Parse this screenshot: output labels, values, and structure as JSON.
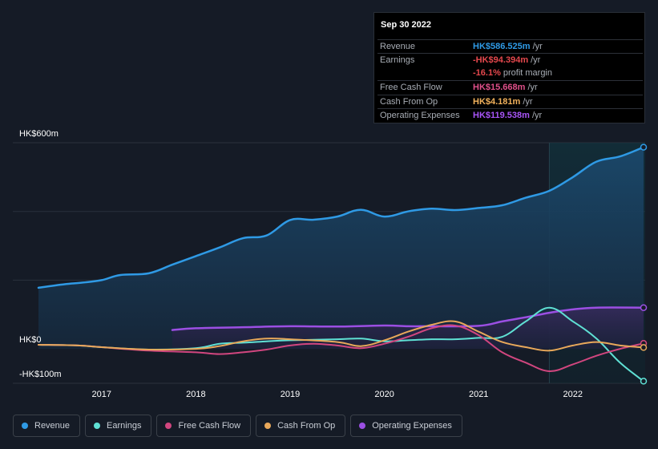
{
  "tooltip": {
    "date": "Sep 30 2022",
    "rows": [
      {
        "label": "Revenue",
        "value": "HK$586.525m",
        "unit": "/yr",
        "color": "#2f9ae5"
      },
      {
        "label": "Earnings",
        "value": "-HK$94.394m",
        "unit": "/yr",
        "color": "#e5484d"
      },
      {
        "label": "",
        "value": "-16.1%",
        "unit": "profit margin",
        "color": "#e5484d"
      },
      {
        "label": "Free Cash Flow",
        "value": "HK$15.668m",
        "unit": "/yr",
        "color": "#e0508a"
      },
      {
        "label": "Cash From Op",
        "value": "HK$4.181m",
        "unit": "/yr",
        "color": "#f2b25c"
      },
      {
        "label": "Operating Expenses",
        "value": "HK$119.538m",
        "unit": "/yr",
        "color": "#a855f7"
      }
    ]
  },
  "legend": [
    {
      "label": "Revenue",
      "color": "#2f9ae5"
    },
    {
      "label": "Earnings",
      "color": "#5fe0d4"
    },
    {
      "label": "Free Cash Flow",
      "color": "#d1467f"
    },
    {
      "label": "Cash From Op",
      "color": "#e8a85a"
    },
    {
      "label": "Operating Expenses",
      "color": "#9b4fe3"
    }
  ],
  "chart_data": {
    "type": "line",
    "y_tick_labels": [
      "HK$600m",
      "HK$0",
      "-HK$100m"
    ],
    "ylim": [
      -100,
      600
    ],
    "xlim": [
      2016.33,
      2022.75
    ],
    "x_tick_labels": [
      "2017",
      "2018",
      "2019",
      "2020",
      "2021",
      "2022"
    ],
    "x_ticks": [
      2017,
      2018,
      2019,
      2020,
      2021,
      2022
    ],
    "highlight_start": 2021.75,
    "series": [
      {
        "name": "Revenue",
        "color": "#2f9ae5",
        "fill": true,
        "points": [
          [
            2016.33,
            178
          ],
          [
            2016.6,
            188
          ],
          [
            2016.8,
            193
          ],
          [
            2017,
            200
          ],
          [
            2017.2,
            215
          ],
          [
            2017.5,
            220
          ],
          [
            2017.75,
            245
          ],
          [
            2018,
            270
          ],
          [
            2018.25,
            295
          ],
          [
            2018.5,
            322
          ],
          [
            2018.75,
            330
          ],
          [
            2019,
            375
          ],
          [
            2019.25,
            376
          ],
          [
            2019.5,
            385
          ],
          [
            2019.75,
            405
          ],
          [
            2020,
            385
          ],
          [
            2020.25,
            400
          ],
          [
            2020.5,
            408
          ],
          [
            2020.75,
            404
          ],
          [
            2021,
            410
          ],
          [
            2021.25,
            418
          ],
          [
            2021.5,
            440
          ],
          [
            2021.75,
            460
          ],
          [
            2022,
            500
          ],
          [
            2022.25,
            545
          ],
          [
            2022.5,
            560
          ],
          [
            2022.75,
            587
          ]
        ]
      },
      {
        "name": "Operating Expenses",
        "color": "#9b4fe3",
        "fill": true,
        "points": [
          [
            2017.75,
            55
          ],
          [
            2018,
            60
          ],
          [
            2018.5,
            63
          ],
          [
            2019,
            66
          ],
          [
            2019.5,
            65
          ],
          [
            2020,
            68
          ],
          [
            2020.25,
            66
          ],
          [
            2020.5,
            66
          ],
          [
            2021,
            67
          ],
          [
            2021.25,
            80
          ],
          [
            2021.5,
            92
          ],
          [
            2021.75,
            105
          ],
          [
            2022,
            115
          ],
          [
            2022.25,
            120
          ],
          [
            2022.75,
            120
          ]
        ]
      },
      {
        "name": "Earnings",
        "color": "#5fe0d4",
        "fill": false,
        "points": [
          [
            2016.33,
            12
          ],
          [
            2016.75,
            10
          ],
          [
            2017,
            5
          ],
          [
            2017.5,
            -2
          ],
          [
            2018,
            2
          ],
          [
            2018.25,
            15
          ],
          [
            2018.5,
            18
          ],
          [
            2018.75,
            22
          ],
          [
            2019,
            25
          ],
          [
            2019.5,
            28
          ],
          [
            2019.75,
            30
          ],
          [
            2020,
            22
          ],
          [
            2020.25,
            25
          ],
          [
            2020.5,
            28
          ],
          [
            2020.75,
            28
          ],
          [
            2021,
            32
          ],
          [
            2021.25,
            35
          ],
          [
            2021.5,
            80
          ],
          [
            2021.75,
            120
          ],
          [
            2022,
            80
          ],
          [
            2022.25,
            30
          ],
          [
            2022.5,
            -40
          ],
          [
            2022.75,
            -94
          ]
        ]
      },
      {
        "name": "Free Cash Flow",
        "color": "#d1467f",
        "fill": false,
        "points": [
          [
            2016.33,
            12
          ],
          [
            2016.75,
            10
          ],
          [
            2017,
            5
          ],
          [
            2017.5,
            -5
          ],
          [
            2018,
            -10
          ],
          [
            2018.25,
            -15
          ],
          [
            2018.5,
            -10
          ],
          [
            2018.75,
            -2
          ],
          [
            2019,
            10
          ],
          [
            2019.25,
            15
          ],
          [
            2019.5,
            10
          ],
          [
            2019.75,
            2
          ],
          [
            2020,
            15
          ],
          [
            2020.25,
            35
          ],
          [
            2020.5,
            60
          ],
          [
            2020.75,
            68
          ],
          [
            2021,
            40
          ],
          [
            2021.25,
            -10
          ],
          [
            2021.5,
            -40
          ],
          [
            2021.75,
            -65
          ],
          [
            2022,
            -45
          ],
          [
            2022.25,
            -20
          ],
          [
            2022.5,
            0
          ],
          [
            2022.75,
            16
          ]
        ]
      },
      {
        "name": "Cash From Op",
        "color": "#e8a85a",
        "fill": false,
        "points": [
          [
            2016.33,
            12
          ],
          [
            2016.75,
            10
          ],
          [
            2017,
            5
          ],
          [
            2017.5,
            -2
          ],
          [
            2018,
            0
          ],
          [
            2018.25,
            8
          ],
          [
            2018.5,
            22
          ],
          [
            2018.75,
            30
          ],
          [
            2019,
            28
          ],
          [
            2019.5,
            20
          ],
          [
            2019.75,
            8
          ],
          [
            2020,
            25
          ],
          [
            2020.25,
            50
          ],
          [
            2020.5,
            70
          ],
          [
            2020.75,
            80
          ],
          [
            2021,
            50
          ],
          [
            2021.25,
            20
          ],
          [
            2021.5,
            5
          ],
          [
            2021.75,
            -5
          ],
          [
            2022,
            10
          ],
          [
            2022.25,
            20
          ],
          [
            2022.5,
            10
          ],
          [
            2022.75,
            4
          ]
        ]
      }
    ]
  }
}
